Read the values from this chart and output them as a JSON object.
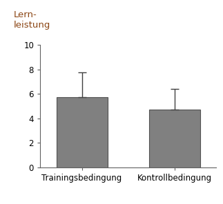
{
  "categories": [
    "Trainingsbedingung",
    "Kontrollbedingung"
  ],
  "values": [
    5.75,
    4.72
  ],
  "errors": [
    2.0,
    1.68
  ],
  "bar_color": "#808080",
  "bar_edge_color": "#505050",
  "bar_width": 0.55,
  "bar_positions": [
    1,
    2
  ],
  "ylabel_line1": "Lern-",
  "ylabel_line2": "leistung",
  "ylabel_color": "#8B4513",
  "ylim": [
    0,
    10
  ],
  "yticks": [
    0,
    2,
    4,
    6,
    8,
    10
  ],
  "error_color": "#404040",
  "error_capsize": 4,
  "error_linewidth": 1.0,
  "tick_label_fontsize": 8.5,
  "ylabel_fontsize": 9.5,
  "background_color": "#ffffff",
  "spine_color": "#606060"
}
